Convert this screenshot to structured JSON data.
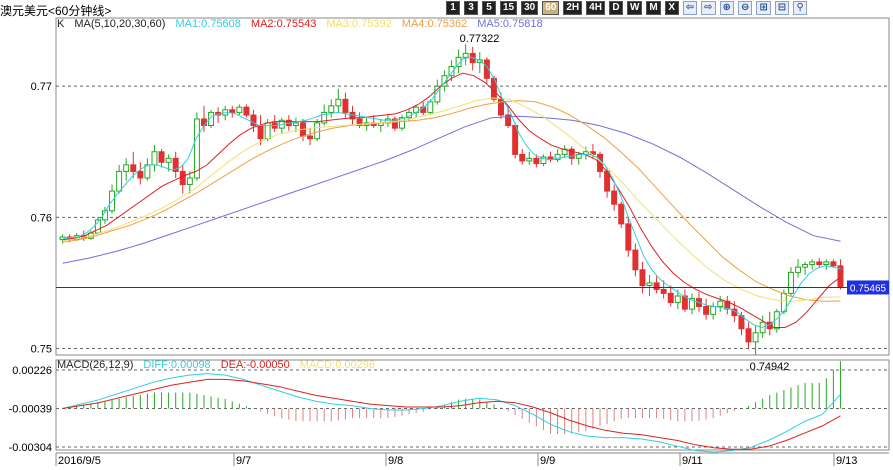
{
  "title": "澳元美元<60分钟线>",
  "toolbar": [
    {
      "label": "1",
      "type": "num"
    },
    {
      "label": "3",
      "type": "num"
    },
    {
      "label": "5",
      "type": "num"
    },
    {
      "label": "15",
      "type": "num"
    },
    {
      "label": "30",
      "type": "num"
    },
    {
      "label": "60",
      "type": "num",
      "active": true
    },
    {
      "label": "2H",
      "type": "num"
    },
    {
      "label": "4H",
      "type": "num"
    },
    {
      "label": "D",
      "type": "num"
    },
    {
      "label": "W",
      "type": "num"
    },
    {
      "label": "M",
      "type": "num"
    },
    {
      "label": "X",
      "type": "num"
    },
    {
      "label": "⇦",
      "type": "icon"
    },
    {
      "label": "⇨",
      "type": "icon"
    },
    {
      "label": "⊕",
      "type": "icon"
    },
    {
      "label": "⊖",
      "type": "icon"
    },
    {
      "label": "⊞",
      "type": "icon"
    },
    {
      "label": "⊟",
      "type": "icon"
    },
    {
      "label": "⚲",
      "type": "icon"
    }
  ],
  "legend": {
    "indicator": "K",
    "ma_params": "MA(5,10,20,30,60)",
    "ma1": "MA1:0.75608",
    "ma2": "MA2:0.75543",
    "ma3": "MA3:0.75392",
    "ma4": "MA4:0.75362",
    "ma5": "MA5:0.75818"
  },
  "macd_legend": {
    "params": "MACD(26,12,9)",
    "diff": "DIFF:0.00098",
    "dea": "DEA:-0.00050",
    "macd": "MACD:0.00296"
  },
  "colors": {
    "up": "#22aa22",
    "down": "#e03030",
    "ma1": "#2fd0e0",
    "ma2": "#e02020",
    "ma3": "#f0e070",
    "ma4": "#f0a040",
    "ma5": "#7070d8",
    "diff": "#2fd0e0",
    "dea": "#e02020",
    "macd_bar": "#e08080",
    "price_line": "#1030d0",
    "price_tag": "#2030e0"
  },
  "chart_data": {
    "type": "candlestick",
    "yticks": [
      "0.77",
      "0.76",
      "0.75"
    ],
    "ylim": [
      0.7495,
      0.7752
    ],
    "xticks": [
      "2016/9/5",
      "9/7",
      "9/8",
      "9/9",
      "9/11",
      "9/13"
    ],
    "annotations": [
      {
        "text": "0.77322",
        "value": 0.77322
      },
      {
        "text": "0.74942",
        "value": 0.74942
      }
    ],
    "current_price": {
      "text": "0.75465",
      "value": 0.75465
    },
    "ohlc": [
      [
        0.7583,
        0.7587,
        0.758,
        0.7585
      ],
      [
        0.7585,
        0.7587,
        0.7581,
        0.7583
      ],
      [
        0.7583,
        0.7588,
        0.7582,
        0.7586
      ],
      [
        0.7586,
        0.759,
        0.7582,
        0.7584
      ],
      [
        0.7584,
        0.759,
        0.7583,
        0.7588
      ],
      [
        0.7588,
        0.76,
        0.7587,
        0.7598
      ],
      [
        0.7598,
        0.7608,
        0.7595,
        0.7605
      ],
      [
        0.7605,
        0.7625,
        0.7603,
        0.762
      ],
      [
        0.762,
        0.764,
        0.7618,
        0.7635
      ],
      [
        0.7635,
        0.7645,
        0.7628,
        0.764
      ],
      [
        0.764,
        0.765,
        0.763,
        0.7635
      ],
      [
        0.7635,
        0.7642,
        0.7625,
        0.763
      ],
      [
        0.763,
        0.7645,
        0.7628,
        0.764
      ],
      [
        0.764,
        0.7655,
        0.7635,
        0.765
      ],
      [
        0.765,
        0.7652,
        0.7638,
        0.7642
      ],
      [
        0.7642,
        0.7648,
        0.7635,
        0.7645
      ],
      [
        0.7645,
        0.765,
        0.763,
        0.7635
      ],
      [
        0.7635,
        0.764,
        0.7618,
        0.7625
      ],
      [
        0.7625,
        0.7635,
        0.7618,
        0.763
      ],
      [
        0.763,
        0.768,
        0.7628,
        0.7675
      ],
      [
        0.7675,
        0.7685,
        0.7665,
        0.767
      ],
      [
        0.767,
        0.7682,
        0.7668,
        0.768
      ],
      [
        0.768,
        0.7684,
        0.7672,
        0.7678
      ],
      [
        0.7678,
        0.7685,
        0.7674,
        0.7682
      ],
      [
        0.7682,
        0.7685,
        0.7676,
        0.768
      ],
      [
        0.768,
        0.7686,
        0.7678,
        0.7684
      ],
      [
        0.7684,
        0.7686,
        0.7676,
        0.7678
      ],
      [
        0.7678,
        0.7682,
        0.7665,
        0.767
      ],
      [
        0.767,
        0.7678,
        0.7655,
        0.766
      ],
      [
        0.766,
        0.7675,
        0.7658,
        0.7672
      ],
      [
        0.7672,
        0.7678,
        0.7665,
        0.7668
      ],
      [
        0.7668,
        0.7676,
        0.7664,
        0.7674
      ],
      [
        0.7674,
        0.7678,
        0.7666,
        0.767
      ],
      [
        0.767,
        0.7676,
        0.7665,
        0.7672
      ],
      [
        0.7672,
        0.7675,
        0.7658,
        0.7662
      ],
      [
        0.7662,
        0.7668,
        0.7655,
        0.766
      ],
      [
        0.766,
        0.7675,
        0.7658,
        0.7672
      ],
      [
        0.7672,
        0.7686,
        0.767,
        0.768
      ],
      [
        0.768,
        0.769,
        0.7676,
        0.7685
      ],
      [
        0.7685,
        0.7698,
        0.768,
        0.769
      ],
      [
        0.769,
        0.7695,
        0.7676,
        0.768
      ],
      [
        0.768,
        0.7685,
        0.767,
        0.7675
      ],
      [
        0.7675,
        0.768,
        0.7668,
        0.767
      ],
      [
        0.767,
        0.7676,
        0.7666,
        0.7672
      ],
      [
        0.7672,
        0.7678,
        0.7668,
        0.767
      ],
      [
        0.767,
        0.7675,
        0.7665,
        0.7672
      ],
      [
        0.7672,
        0.7678,
        0.7669,
        0.7675
      ],
      [
        0.7675,
        0.7677,
        0.7666,
        0.7668
      ],
      [
        0.7668,
        0.7678,
        0.7666,
        0.7676
      ],
      [
        0.7676,
        0.7682,
        0.7673,
        0.768
      ],
      [
        0.768,
        0.7686,
        0.7676,
        0.7684
      ],
      [
        0.7684,
        0.7688,
        0.7678,
        0.768
      ],
      [
        0.768,
        0.769,
        0.7678,
        0.7688
      ],
      [
        0.7688,
        0.7705,
        0.7686,
        0.77
      ],
      [
        0.77,
        0.7712,
        0.7696,
        0.7708
      ],
      [
        0.7708,
        0.772,
        0.7704,
        0.7715
      ],
      [
        0.7715,
        0.7728,
        0.771,
        0.7722
      ],
      [
        0.7722,
        0.7732,
        0.7716,
        0.7725
      ],
      [
        0.7725,
        0.773,
        0.7712,
        0.7718
      ],
      [
        0.7718,
        0.7726,
        0.771,
        0.772
      ],
      [
        0.772,
        0.7722,
        0.7702,
        0.7706
      ],
      [
        0.7706,
        0.7708,
        0.7688,
        0.769
      ],
      [
        0.769,
        0.7695,
        0.7675,
        0.7678
      ],
      [
        0.7678,
        0.7685,
        0.7668,
        0.767
      ],
      [
        0.767,
        0.7672,
        0.7645,
        0.7648
      ],
      [
        0.7648,
        0.7652,
        0.764,
        0.7643
      ],
      [
        0.7643,
        0.765,
        0.764,
        0.7645
      ],
      [
        0.7645,
        0.7648,
        0.7638,
        0.7641
      ],
      [
        0.7641,
        0.7648,
        0.7639,
        0.7646
      ],
      [
        0.7646,
        0.765,
        0.7642,
        0.7644
      ],
      [
        0.7644,
        0.7652,
        0.7642,
        0.7648
      ],
      [
        0.7648,
        0.7655,
        0.7645,
        0.7652
      ],
      [
        0.7652,
        0.7654,
        0.764,
        0.7645
      ],
      [
        0.7645,
        0.765,
        0.764,
        0.7648
      ],
      [
        0.7648,
        0.7654,
        0.7644,
        0.765
      ],
      [
        0.765,
        0.7656,
        0.7645,
        0.7648
      ],
      [
        0.7648,
        0.765,
        0.763,
        0.7635
      ],
      [
        0.7635,
        0.7638,
        0.7615,
        0.762
      ],
      [
        0.762,
        0.7625,
        0.7605,
        0.761
      ],
      [
        0.761,
        0.7612,
        0.7592,
        0.7595
      ],
      [
        0.7595,
        0.76,
        0.757,
        0.7575
      ],
      [
        0.7575,
        0.758,
        0.7555,
        0.756
      ],
      [
        0.756,
        0.7566,
        0.7542,
        0.7548
      ],
      [
        0.7548,
        0.7556,
        0.754,
        0.755
      ],
      [
        0.755,
        0.7555,
        0.7542,
        0.7545
      ],
      [
        0.7545,
        0.7552,
        0.7538,
        0.7542
      ],
      [
        0.7542,
        0.7548,
        0.7532,
        0.7535
      ],
      [
        0.7535,
        0.7545,
        0.753,
        0.754
      ],
      [
        0.754,
        0.7545,
        0.7528,
        0.753
      ],
      [
        0.753,
        0.7542,
        0.7526,
        0.7538
      ],
      [
        0.7538,
        0.7543,
        0.7528,
        0.7532
      ],
      [
        0.7532,
        0.7538,
        0.7522,
        0.7526
      ],
      [
        0.7526,
        0.7535,
        0.7522,
        0.7532
      ],
      [
        0.7532,
        0.754,
        0.7528,
        0.7536
      ],
      [
        0.7536,
        0.754,
        0.7526,
        0.753
      ],
      [
        0.753,
        0.7536,
        0.752,
        0.7525
      ],
      [
        0.7525,
        0.7528,
        0.751,
        0.7515
      ],
      [
        0.7515,
        0.752,
        0.75,
        0.7505
      ],
      [
        0.7505,
        0.7518,
        0.7495,
        0.7512
      ],
      [
        0.7512,
        0.7525,
        0.7508,
        0.752
      ],
      [
        0.752,
        0.7528,
        0.751,
        0.7515
      ],
      [
        0.7515,
        0.753,
        0.7512,
        0.7528
      ],
      [
        0.7528,
        0.7545,
        0.7526,
        0.7542
      ],
      [
        0.7542,
        0.7562,
        0.754,
        0.7558
      ],
      [
        0.7558,
        0.7568,
        0.7554,
        0.7562
      ],
      [
        0.7562,
        0.7566,
        0.7556,
        0.7564
      ],
      [
        0.7564,
        0.7568,
        0.756,
        0.7566
      ],
      [
        0.7566,
        0.7569,
        0.7562,
        0.7564
      ],
      [
        0.7564,
        0.7568,
        0.756,
        0.7566
      ],
      [
        0.7566,
        0.7568,
        0.7562,
        0.7563
      ],
      [
        0.7563,
        0.7568,
        0.7545,
        0.7547
      ]
    ],
    "ma": {
      "ma1": [
        0.75835,
        0.75845,
        0.7585,
        0.7588,
        0.7593,
        0.76,
        0.761,
        0.7618,
        0.7625,
        0.7632,
        0.7637,
        0.764,
        0.764,
        0.7638,
        0.7636,
        0.7638,
        0.7645,
        0.766,
        0.767,
        0.7677,
        0.7679,
        0.768,
        0.7679,
        0.7676,
        0.7673,
        0.767,
        0.767,
        0.767,
        0.7671,
        0.7672,
        0.7673,
        0.7674,
        0.7676,
        0.7678,
        0.7679,
        0.768,
        0.7679,
        0.7678,
        0.7677,
        0.7676,
        0.7675,
        0.7674,
        0.7674,
        0.7675,
        0.7677,
        0.768,
        0.7684,
        0.769,
        0.7698,
        0.7706,
        0.7714,
        0.7721,
        0.7722,
        0.772,
        0.7715,
        0.7705,
        0.769,
        0.768,
        0.7665,
        0.7655,
        0.7648,
        0.7645,
        0.7644,
        0.7645,
        0.7646,
        0.7647,
        0.7648,
        0.7648,
        0.7646,
        0.764,
        0.763,
        0.7617,
        0.76,
        0.7585,
        0.757,
        0.756,
        0.7553,
        0.7548,
        0.7544,
        0.754,
        0.7537,
        0.7535,
        0.7533,
        0.7532,
        0.7531,
        0.753,
        0.7527,
        0.7522,
        0.7518,
        0.7516,
        0.7518,
        0.7523,
        0.753,
        0.754,
        0.755,
        0.7557,
        0.7561,
        0.7563,
        0.7562,
        0.75608
      ],
      "ma2": [
        0.7583,
        0.7584,
        0.7586,
        0.759,
        0.7594,
        0.76,
        0.7606,
        0.7612,
        0.7618,
        0.7624,
        0.7628,
        0.7632,
        0.7635,
        0.764,
        0.7648,
        0.7656,
        0.7663,
        0.7668,
        0.7671,
        0.7673,
        0.7673,
        0.7673,
        0.7673,
        0.7673,
        0.7674,
        0.7675,
        0.7676,
        0.7676,
        0.7677,
        0.7678,
        0.7679,
        0.7682,
        0.7686,
        0.7692,
        0.77,
        0.7706,
        0.771,
        0.7708,
        0.7703,
        0.7695,
        0.7686,
        0.7675,
        0.7666,
        0.766,
        0.7655,
        0.7652,
        0.765,
        0.7648,
        0.7644,
        0.7635,
        0.7622,
        0.7608,
        0.7592,
        0.7578,
        0.7566,
        0.7557,
        0.755,
        0.7545,
        0.7541,
        0.7538,
        0.7535,
        0.7531,
        0.7526,
        0.7521,
        0.7516,
        0.7516,
        0.752,
        0.7528,
        0.7538,
        0.7548,
        0.75543
      ],
      "ma3": [
        0.7582,
        0.7584,
        0.7587,
        0.7591,
        0.7596,
        0.7601,
        0.7607,
        0.7614,
        0.7622,
        0.7632,
        0.7642,
        0.7651,
        0.7658,
        0.7663,
        0.7666,
        0.7668,
        0.7669,
        0.767,
        0.7671,
        0.7672,
        0.7673,
        0.7675,
        0.7678,
        0.7681,
        0.7685,
        0.7689,
        0.7691,
        0.769,
        0.7684,
        0.7677,
        0.7668,
        0.7658,
        0.7648,
        0.7637,
        0.7624,
        0.761,
        0.7597,
        0.7584,
        0.7572,
        0.7561,
        0.7552,
        0.7545,
        0.754,
        0.7537,
        0.7536,
        0.7537,
        0.7539,
        0.75392
      ],
      "ma4": [
        0.7581,
        0.7583,
        0.7586,
        0.759,
        0.7594,
        0.7599,
        0.7605,
        0.7612,
        0.7619,
        0.7627,
        0.7635,
        0.7643,
        0.765,
        0.7656,
        0.7661,
        0.7665,
        0.7668,
        0.767,
        0.7671,
        0.7672,
        0.7673,
        0.7674,
        0.7676,
        0.7679,
        0.7683,
        0.7686,
        0.7688,
        0.7689,
        0.7688,
        0.7684,
        0.7678,
        0.767,
        0.7661,
        0.765,
        0.7638,
        0.7624,
        0.761,
        0.7596,
        0.7583,
        0.757,
        0.756,
        0.7551,
        0.7545,
        0.754,
        0.7537,
        0.7536,
        0.75362
      ],
      "ma5": [
        0.7565,
        0.7569,
        0.7574,
        0.758,
        0.7587,
        0.7594,
        0.7601,
        0.7608,
        0.7615,
        0.7622,
        0.7629,
        0.7636,
        0.7643,
        0.7651,
        0.766,
        0.7669,
        0.7676,
        0.7677,
        0.7676,
        0.7674,
        0.767,
        0.7664,
        0.7656,
        0.7646,
        0.7634,
        0.7621,
        0.7608,
        0.7596,
        0.7586,
        0.75818
      ]
    },
    "macd": {
      "yticks": [
        "0.00226",
        "-0.00039",
        "-0.00304"
      ],
      "ylim": [
        -0.00304,
        0.00226
      ],
      "diff": [
        0.0,
        0.0003,
        0.0006,
        0.001,
        0.0014,
        0.0018,
        0.0021,
        0.0023,
        0.0024,
        0.0023,
        0.002,
        0.0016,
        0.0012,
        0.0008,
        0.0005,
        0.0003,
        0.0002,
        0.0,
        -0.0001,
        -0.0001,
        0.0,
        0.0002,
        0.0005,
        0.0007,
        0.0006,
        0.0002,
        -0.0004,
        -0.0011,
        -0.0016,
        -0.0019,
        -0.002,
        -0.002,
        -0.0021,
        -0.0023,
        -0.0026,
        -0.0029,
        -0.003,
        -0.0029,
        -0.0027,
        -0.0022,
        -0.0016,
        -0.0009,
        -0.0004,
        0.00098
      ],
      "dea": [
        0.0,
        0.0002,
        0.0004,
        0.0007,
        0.001,
        0.0013,
        0.0016,
        0.0018,
        0.002,
        0.002,
        0.0019,
        0.0017,
        0.0015,
        0.0012,
        0.0009,
        0.0007,
        0.0005,
        0.0003,
        0.0002,
        0.0001,
        0.0001,
        0.0001,
        0.0002,
        0.0004,
        0.0005,
        0.0004,
        0.0001,
        -0.0003,
        -0.0008,
        -0.0012,
        -0.0015,
        -0.0017,
        -0.0018,
        -0.002,
        -0.0022,
        -0.0025,
        -0.0027,
        -0.0028,
        -0.0028,
        -0.0026,
        -0.0022,
        -0.0017,
        -0.0012,
        -0.0005
      ],
      "bars": [
        0.0,
        0.0002,
        0.0004,
        0.0006,
        0.0008,
        0.001,
        0.001,
        0.001,
        0.0008,
        0.0006,
        0.0002,
        -0.0002,
        -0.0006,
        -0.0008,
        -0.0008,
        -0.0008,
        -0.0006,
        -0.0006,
        -0.0006,
        -0.0004,
        -0.0002,
        0.0002,
        0.0006,
        0.0006,
        0.0002,
        -0.0004,
        -0.001,
        -0.0016,
        -0.0016,
        -0.0014,
        -0.001,
        -0.0006,
        -0.0006,
        -0.0006,
        -0.0008,
        -0.0008,
        -0.0006,
        -0.0002,
        0.0002,
        0.0008,
        0.0012,
        0.0016,
        0.0016,
        0.00296
      ]
    }
  }
}
